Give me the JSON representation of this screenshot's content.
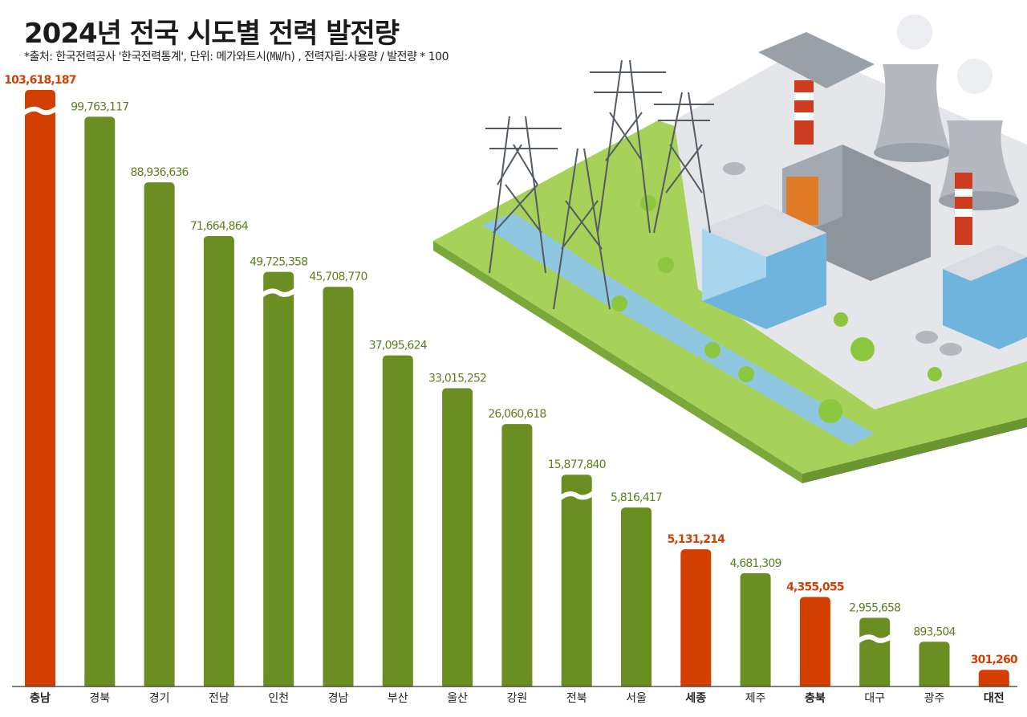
{
  "title": "2024년 전국 시도별 전력 발전량",
  "subtitle": "*출처:  한국전력공사 '한국전력통계', 단위: 메가와트시(㎿/h) , 전력자립:사용량 / 발전량 * 100",
  "colors": {
    "green": "#6b8e23",
    "red": "#d33f00",
    "greenText": "#5c7f1e",
    "redText": "#d33f00"
  },
  "chart_data": {
    "type": "bar",
    "title": "2024년 전국 시도별 전력 발전량",
    "categories": [
      "충남",
      "경북",
      "경기",
      "전남",
      "인천",
      "경남",
      "부산",
      "울산",
      "강원",
      "전북",
      "서울",
      "세종",
      "제주",
      "충북",
      "대구",
      "광주",
      "대전"
    ],
    "values": [
      103618187,
      99763117,
      88936636,
      71664864,
      49725358,
      45708770,
      37095624,
      33015252,
      26060618,
      15877840,
      5816417,
      5131214,
      4681309,
      4355055,
      2955658,
      893504,
      301260
    ],
    "value_labels": [
      "103,618,187",
      "99,763,117",
      "88,936,636",
      "71,664,864",
      "49,725,358",
      "45,708,770",
      "37,095,624",
      "33,015,252",
      "26,060,618",
      "15,877,840",
      "5,816,417",
      "5,131,214",
      "4,681,309",
      "4,355,055",
      "2,955,658",
      "893,504",
      "301,260"
    ],
    "highlighted": [
      "충남",
      "세종",
      "충북",
      "대전"
    ],
    "broken_axis": [
      "충남",
      "인천",
      "전북",
      "대구"
    ],
    "display_levels": [
      1.0,
      0.955,
      0.845,
      0.755,
      0.695,
      0.67,
      0.555,
      0.5,
      0.44,
      0.355,
      0.3,
      0.23,
      0.19,
      0.15,
      0.115,
      0.075,
      0.028
    ]
  }
}
